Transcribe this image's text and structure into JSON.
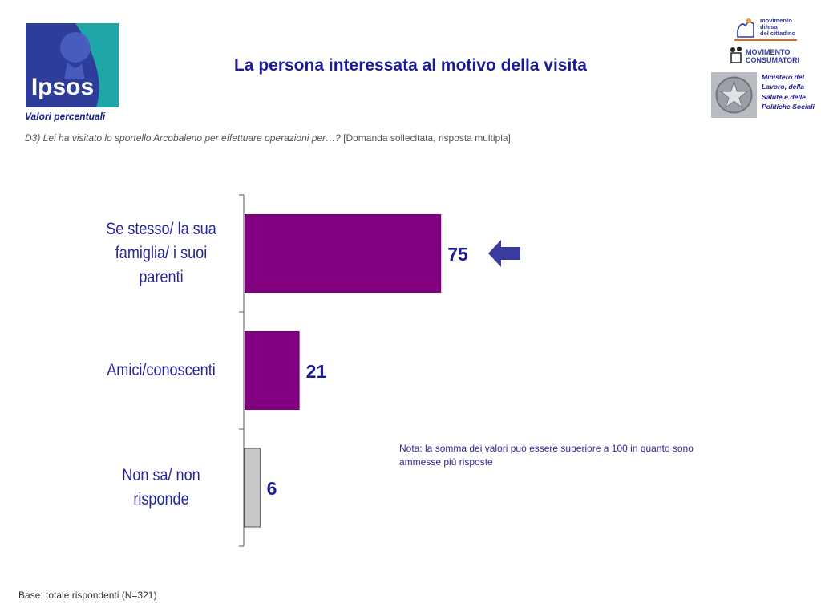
{
  "header": {
    "title": "La persona interessata al motivo della visita",
    "subtitle": "Valori percentuali",
    "question_italic": "D3) Lei ha visitato lo sportello Arcobaleno per effettuare operazioni per…?",
    "question_plain": "[Domanda sollecitata, risposta multipla]"
  },
  "logos": {
    "ipsos": "Ipsos",
    "mdc_lines": [
      "movimento",
      "difesa",
      "del cittadino"
    ],
    "mc_lines": [
      "MOVIMENTO",
      "CONSUMATORI"
    ],
    "ministry": "Ministero del Lavoro, della Salute e delle Politiche Sociali"
  },
  "colors": {
    "bar_primary": "#800080",
    "bar_other": "#c8c8c8",
    "text_blue": "#1b1b9a",
    "arrow": "#3a3a9f",
    "ipsos_blue": "#2f3d9a",
    "ipsos_teal": "#1fa7a7"
  },
  "chart_data": {
    "type": "bar",
    "orientation": "horizontal",
    "categories": [
      "Se stesso/ la sua famiglia/ i suoi parenti",
      "Amici/conoscenti",
      "Non sa/ non risponde"
    ],
    "values": [
      75,
      21,
      6
    ],
    "highlight_index": 0,
    "grid": false
  },
  "footer": {
    "note": "Nota: la somma dei valori può essere superiore a 100 in quanto sono ammesse più risposte",
    "base": "Base: totale rispondenti (N=321)"
  }
}
